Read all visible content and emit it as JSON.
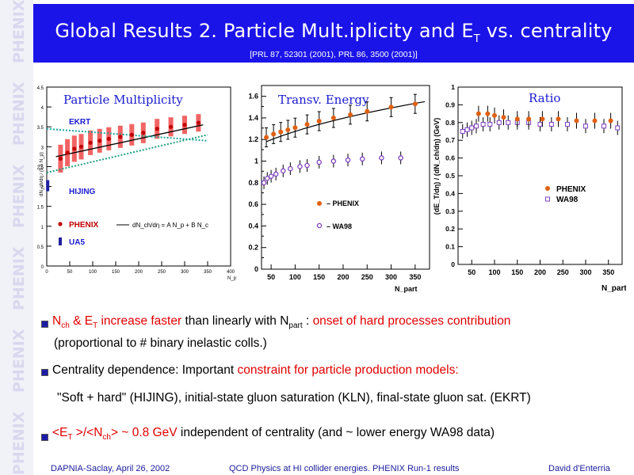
{
  "sidebar": {
    "watermark": "PHENIX"
  },
  "header": {
    "title_main": "Global Results 2. Particle Mult.iplicity and E",
    "title_sub": "T",
    "title_end": " vs. centrality",
    "reference": "[PRL 87, 52301 (2001), PRL 86, 3500 (2001)]"
  },
  "chart_data": [
    {
      "type": "scatter",
      "title": "Particle Multiplicity",
      "xlabel": "N_p",
      "ylabel": "dN_ch/dη / (0.5 N_p)",
      "xlim": [
        0,
        400
      ],
      "ylim": [
        0,
        4.5
      ],
      "xticks": [
        "0",
        "50",
        "100",
        "150",
        "200",
        "250",
        "300",
        "350",
        "400"
      ],
      "yticks": [
        "0",
        "0.5",
        "1",
        "1.5",
        "2",
        "2.5",
        "3",
        "3.5",
        "4",
        "4.5"
      ],
      "legend": [
        "PHENIX",
        "UA5"
      ],
      "annotations": [
        "EKRT",
        "HIJING",
        "dN_ch/dη = A N_p + B N_c"
      ],
      "series": [
        {
          "name": "PHENIX",
          "x": [
            30,
            45,
            60,
            75,
            95,
            115,
            135,
            160,
            185,
            210,
            240,
            270,
            300,
            330
          ],
          "y": [
            2.7,
            2.85,
            2.95,
            3.0,
            3.1,
            3.15,
            3.2,
            3.25,
            3.3,
            3.35,
            3.45,
            3.5,
            3.55,
            3.6
          ]
        },
        {
          "name": "UA5",
          "x": [
            2
          ],
          "y": [
            2.0
          ]
        },
        {
          "name": "EKRT",
          "x": [
            0,
            350
          ],
          "y": [
            3.45,
            3.15
          ]
        },
        {
          "name": "HIJING",
          "x": [
            0,
            350
          ],
          "y": [
            2.35,
            3.3
          ]
        }
      ]
    },
    {
      "type": "scatter",
      "title": "Transv. Energy",
      "xlabel": "N_part",
      "ylabel": "",
      "xlim": [
        30,
        380
      ],
      "ylim": [
        0,
        1.7
      ],
      "xticks": [
        "50",
        "100",
        "150",
        "200",
        "250",
        "300",
        "350"
      ],
      "yticks": [
        "0",
        "0.2",
        "0.4",
        "0.6",
        "0.8",
        "1",
        "1.2",
        "1.4",
        "1.6"
      ],
      "legend": [
        "PHENIX",
        "WA98"
      ],
      "series": [
        {
          "name": "PHENIX",
          "x": [
            40,
            55,
            70,
            85,
            100,
            125,
            150,
            180,
            215,
            250,
            300,
            350
          ],
          "y": [
            1.22,
            1.25,
            1.27,
            1.29,
            1.31,
            1.34,
            1.37,
            1.4,
            1.43,
            1.46,
            1.5,
            1.53
          ]
        },
        {
          "name": "WA98",
          "x": [
            35,
            42,
            50,
            60,
            75,
            90,
            110,
            125,
            150,
            180,
            210,
            240,
            280,
            320
          ],
          "y": [
            0.8,
            0.84,
            0.86,
            0.88,
            0.91,
            0.93,
            0.95,
            0.96,
            0.99,
            1.0,
            1.01,
            1.02,
            1.03,
            1.03
          ]
        }
      ]
    },
    {
      "type": "scatter",
      "title": "Ratio",
      "xlabel": "N_part",
      "ylabel": "(dE_T/dη) / (dN_ch/dη) (GeV)",
      "xlim": [
        20,
        380
      ],
      "ylim": [
        0,
        1.0
      ],
      "xticks": [
        "50",
        "100",
        "150",
        "200",
        "250",
        "300",
        "350"
      ],
      "yticks": [
        "0",
        "0.1",
        "0.2",
        "0.3",
        "0.4",
        "0.5",
        "0.6",
        "0.7",
        "0.8",
        "0.9",
        "1"
      ],
      "legend": [
        "PHENIX",
        "WA98"
      ],
      "series": [
        {
          "name": "PHENIX",
          "x": [
            65,
            85,
            100,
            120,
            150,
            175,
            205,
            240,
            280,
            320,
            355
          ],
          "y": [
            0.85,
            0.85,
            0.84,
            0.83,
            0.82,
            0.82,
            0.82,
            0.82,
            0.81,
            0.81,
            0.81
          ]
        },
        {
          "name": "WA98",
          "x": [
            30,
            40,
            50,
            60,
            75,
            90,
            110,
            130,
            150,
            175,
            200,
            225,
            260,
            300,
            340,
            370
          ],
          "y": [
            0.75,
            0.76,
            0.77,
            0.78,
            0.79,
            0.79,
            0.8,
            0.8,
            0.8,
            0.8,
            0.79,
            0.79,
            0.79,
            0.78,
            0.78,
            0.77
          ]
        }
      ]
    }
  ],
  "bullets": {
    "b1": {
      "nch": "N",
      "nch_sub": "ch",
      "amp": " & E",
      "et_sub": "T",
      "red1": " increase faster",
      "black1": " than linearly with N",
      "npart_sub": "part",
      "colon": " : ",
      "red2": "onset of hard processes contribution",
      "line2": "(proportional to  # binary inelastic colls.)"
    },
    "b2": {
      "black1": "Centrality dependence: Important ",
      "red1": "constraint for particle production models:",
      "line2": "\"Soft + hard\" (HIJING), initial-state gluon saturation (KLN), final-state gluon sat. (EKRT)"
    },
    "b3": {
      "red_lt": "<E",
      "red_t": "T",
      "red_mid": " >/<N",
      "red_ch": "ch",
      "red_end": "> ~ 0.8 GeV",
      "black": " independent of centrality (and ~ lower energy WA98 data)"
    }
  },
  "footer": {
    "left": "DAPNIA-Saclay, April 26, 2002",
    "center": "QCD Physics at HI collider energies. PHENIX Run-1 results",
    "right": "David d'Enterria"
  },
  "colors": {
    "title_bg": "#1b14e8",
    "phenix_orange": "#e06010",
    "phenix_red": "#cc0000",
    "wa98_purple": "#8040c0",
    "footer_blue": "#1b1b9c"
  }
}
